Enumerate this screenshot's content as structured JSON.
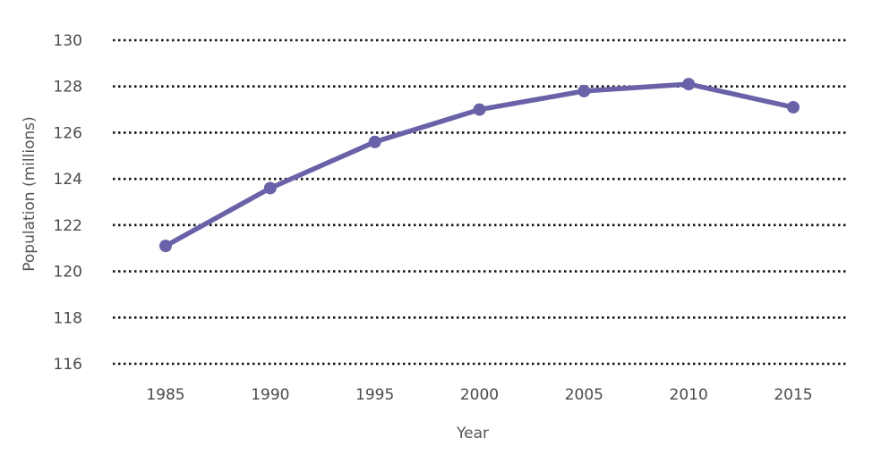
{
  "chart_data": {
    "type": "line",
    "title": "",
    "xlabel": "Year",
    "ylabel": "Population (millions)",
    "x": [
      1985,
      1990,
      1995,
      2000,
      2005,
      2010,
      2015
    ],
    "x_tick_labels": [
      "1985",
      "1990",
      "1995",
      "2000",
      "2005",
      "2010",
      "2015"
    ],
    "y_tick_labels": [
      "116",
      "118",
      "120",
      "122",
      "124",
      "126",
      "128",
      "130"
    ],
    "ylim": [
      116,
      130
    ],
    "grid": true,
    "legend": "none",
    "series": [
      {
        "color": "#6a62a8",
        "values": [
          121.1,
          123.6,
          125.6,
          127.0,
          127.8,
          128.1,
          127.1
        ]
      }
    ]
  }
}
